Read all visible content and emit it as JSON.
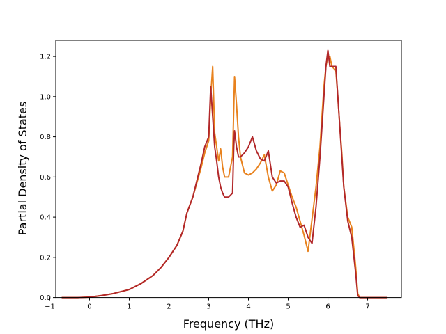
{
  "chart_data": {
    "type": "line",
    "title": "",
    "xlabel": "Frequency (THz)",
    "ylabel": "Partial Density of States",
    "xlim": [
      -0.85,
      7.85
    ],
    "ylim": [
      0.0,
      1.28
    ],
    "xticks": [
      -1,
      0,
      1,
      2,
      3,
      4,
      5,
      6,
      7
    ],
    "yticks": [
      0.0,
      0.2,
      0.4,
      0.6,
      0.8,
      1.0,
      1.2
    ],
    "xtick_labels": [
      "−1",
      "0",
      "1",
      "2",
      "3",
      "4",
      "5",
      "6",
      "7"
    ],
    "ytick_labels": [
      "0.0",
      "0.2",
      "0.4",
      "0.6",
      "0.8",
      "1.0",
      "1.2"
    ],
    "grid": false,
    "legend": "none",
    "series": [
      {
        "color": "#e8821e",
        "x": [
          -0.7,
          -0.3,
          0.0,
          0.3,
          0.6,
          1.0,
          1.3,
          1.6,
          1.8,
          2.0,
          2.2,
          2.35,
          2.45,
          2.6,
          2.7,
          2.8,
          2.9,
          3.0,
          3.05,
          3.1,
          3.15,
          3.2,
          3.25,
          3.3,
          3.35,
          3.4,
          3.5,
          3.6,
          3.65,
          3.7,
          3.75,
          3.8,
          3.9,
          4.0,
          4.1,
          4.2,
          4.3,
          4.4,
          4.5,
          4.6,
          4.7,
          4.8,
          4.9,
          5.0,
          5.1,
          5.2,
          5.3,
          5.4,
          5.45,
          5.5,
          5.6,
          5.7,
          5.8,
          5.9,
          5.95,
          6.0,
          6.05,
          6.1,
          6.2,
          6.25,
          6.3,
          6.35,
          6.4,
          6.5,
          6.6,
          6.7,
          6.75,
          6.8,
          6.85,
          7.0,
          7.5
        ],
        "y": [
          0.0,
          0.0,
          0.002,
          0.01,
          0.02,
          0.04,
          0.07,
          0.11,
          0.15,
          0.2,
          0.26,
          0.33,
          0.42,
          0.5,
          0.57,
          0.64,
          0.72,
          0.78,
          1.0,
          1.15,
          0.82,
          0.75,
          0.68,
          0.74,
          0.65,
          0.6,
          0.6,
          0.7,
          1.1,
          0.96,
          0.8,
          0.7,
          0.62,
          0.61,
          0.62,
          0.64,
          0.67,
          0.71,
          0.6,
          0.53,
          0.56,
          0.63,
          0.62,
          0.56,
          0.5,
          0.45,
          0.38,
          0.31,
          0.27,
          0.23,
          0.39,
          0.55,
          0.75,
          1.05,
          1.15,
          1.2,
          1.2,
          1.15,
          1.13,
          1.0,
          0.85,
          0.72,
          0.55,
          0.4,
          0.35,
          0.15,
          0.02,
          0.0,
          0.0,
          0.0,
          0.0
        ]
      },
      {
        "color": "#b2282a",
        "x": [
          -0.7,
          -0.3,
          0.0,
          0.3,
          0.6,
          1.0,
          1.3,
          1.6,
          1.8,
          2.0,
          2.2,
          2.35,
          2.45,
          2.6,
          2.7,
          2.8,
          2.9,
          3.0,
          3.05,
          3.1,
          3.15,
          3.2,
          3.25,
          3.3,
          3.35,
          3.4,
          3.5,
          3.6,
          3.63,
          3.65,
          3.7,
          3.75,
          3.8,
          3.9,
          4.0,
          4.1,
          4.2,
          4.3,
          4.4,
          4.5,
          4.6,
          4.7,
          4.8,
          4.9,
          5.0,
          5.1,
          5.2,
          5.3,
          5.4,
          5.45,
          5.5,
          5.6,
          5.7,
          5.8,
          5.9,
          5.95,
          6.0,
          6.05,
          6.1,
          6.2,
          6.25,
          6.3,
          6.35,
          6.4,
          6.5,
          6.6,
          6.7,
          6.75,
          6.8,
          6.85,
          7.0,
          7.5
        ],
        "y": [
          0.0,
          0.0,
          0.002,
          0.01,
          0.02,
          0.04,
          0.07,
          0.11,
          0.15,
          0.2,
          0.26,
          0.33,
          0.42,
          0.5,
          0.58,
          0.66,
          0.75,
          0.8,
          1.05,
          0.9,
          0.75,
          0.68,
          0.6,
          0.55,
          0.52,
          0.5,
          0.5,
          0.52,
          0.75,
          0.83,
          0.75,
          0.7,
          0.7,
          0.72,
          0.75,
          0.8,
          0.73,
          0.69,
          0.68,
          0.73,
          0.6,
          0.57,
          0.58,
          0.58,
          0.55,
          0.47,
          0.4,
          0.35,
          0.36,
          0.33,
          0.3,
          0.27,
          0.45,
          0.7,
          1.0,
          1.15,
          1.23,
          1.15,
          1.15,
          1.15,
          1.0,
          0.85,
          0.7,
          0.55,
          0.38,
          0.3,
          0.12,
          0.01,
          0.0,
          0.0,
          0.0,
          0.0
        ]
      }
    ]
  }
}
